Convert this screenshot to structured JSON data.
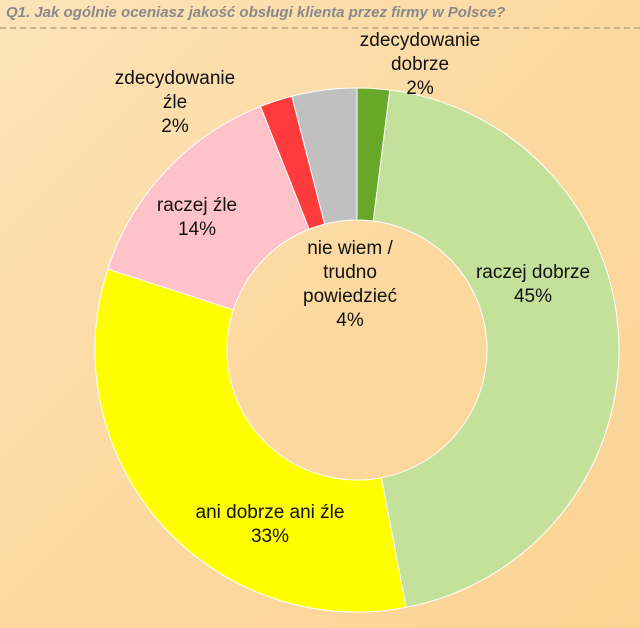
{
  "chart_data": {
    "type": "donut",
    "title": "Q1. Jak ogólnie oceniasz jakość obsługi klienta przez firmy w Polsce?",
    "categories": [
      "zdecydowanie dobrze",
      "raczej dobrze",
      "ani dobrze ani źle",
      "raczej źle",
      "zdecydowanie źle",
      "nie wiem / trudno powiedzieć"
    ],
    "values": [
      2,
      45,
      33,
      14,
      2,
      4
    ],
    "value_labels": [
      "2%",
      "45%",
      "33%",
      "14%",
      "2%",
      "4%"
    ],
    "colors": [
      "#67a829",
      "#c3e19a",
      "#ffff00",
      "#ffc2c8",
      "#ff3b3b",
      "#c0c0c0"
    ]
  }
}
